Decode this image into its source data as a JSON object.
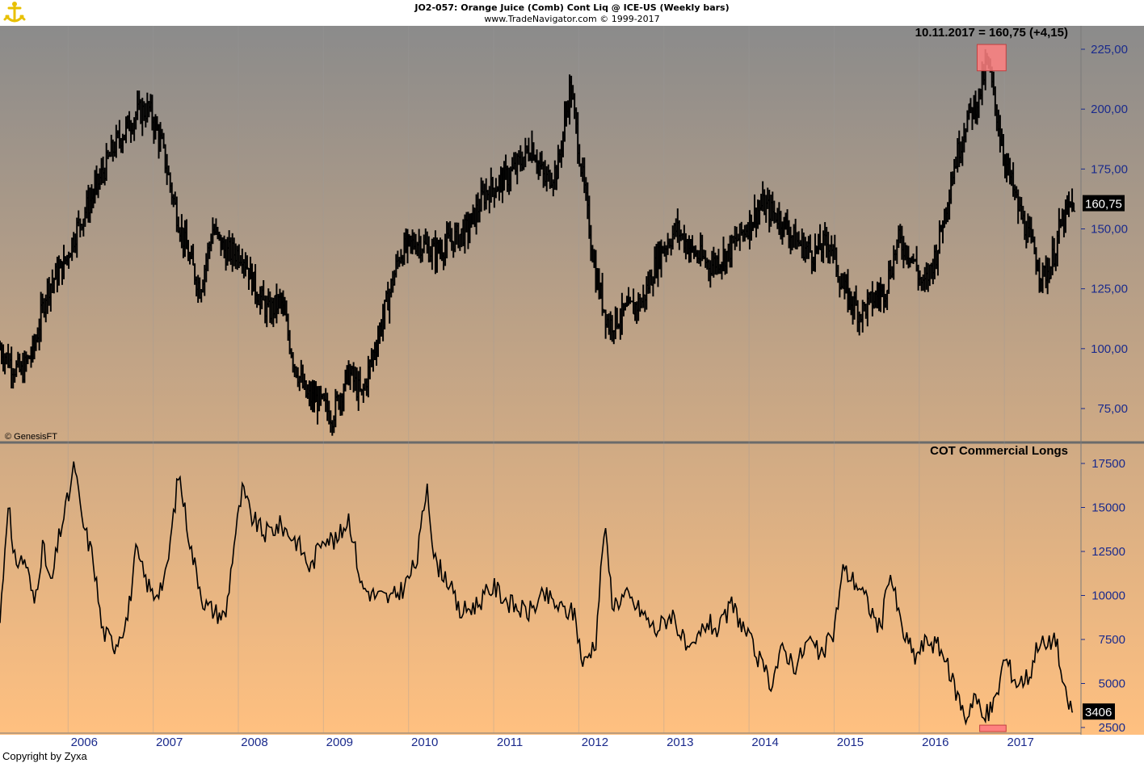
{
  "header": {
    "title": "JO2-057:  Orange Juice (Comb) Cont Liq @ ICE-US  (Weekly bars)",
    "subtitle": "www.TradeNavigator.com © 1999-2017"
  },
  "credits": {
    "genesis": "© GenesisFT",
    "copyright": "Copyright by Zyxa"
  },
  "logo": {
    "icon": "anchor-logo-icon",
    "color": "#e8c000"
  },
  "colors": {
    "bg_top": "#8b8b8b",
    "bg_bottom": "#ffc080",
    "series": "#000000",
    "axis_text": "#1a2a8c",
    "highlight": "#ff8080"
  },
  "chart_data": [
    {
      "type": "ohlc",
      "panel": "price",
      "annotation": "10.11.2017 = 160,75 (+4,15)",
      "last_value_label": "160,75",
      "last_value": 160.75,
      "ylim": [
        65,
        228
      ],
      "y_ticks": [
        75,
        100,
        125,
        150,
        175,
        200,
        225
      ],
      "y_tick_labels": [
        "75,00",
        "100,00",
        "125,00",
        "150,00",
        "175,00",
        "200,00",
        "225,00"
      ],
      "x_ticks": [
        2006,
        2007,
        2008,
        2009,
        2010,
        2011,
        2012,
        2013,
        2014,
        2015,
        2016,
        2017
      ],
      "x_tick_labels": [
        "2006",
        "2007",
        "2008",
        "2009",
        "2010",
        "2011",
        "2012",
        "2013",
        "2014",
        "2015",
        "2016",
        "2017"
      ],
      "xlim": [
        2005.2,
        2017.9
      ],
      "anchors": [
        [
          2005.2,
          100
        ],
        [
          2005.35,
          93
        ],
        [
          2005.45,
          90
        ],
        [
          2005.6,
          100
        ],
        [
          2005.75,
          125
        ],
        [
          2005.95,
          135
        ],
        [
          2006.1,
          150
        ],
        [
          2006.3,
          165
        ],
        [
          2006.55,
          185
        ],
        [
          2006.8,
          198
        ],
        [
          2006.95,
          200
        ],
        [
          2007.1,
          185
        ],
        [
          2007.25,
          160
        ],
        [
          2007.4,
          140
        ],
        [
          2007.55,
          125
        ],
        [
          2007.7,
          150
        ],
        [
          2007.85,
          140
        ],
        [
          2008.05,
          140
        ],
        [
          2008.2,
          125
        ],
        [
          2008.35,
          115
        ],
        [
          2008.5,
          120
        ],
        [
          2008.65,
          95
        ],
        [
          2008.8,
          80
        ],
        [
          2008.95,
          78
        ],
        [
          2009.1,
          72
        ],
        [
          2009.3,
          90
        ],
        [
          2009.45,
          80
        ],
        [
          2009.6,
          100
        ],
        [
          2009.75,
          120
        ],
        [
          2009.9,
          140
        ],
        [
          2010.1,
          145
        ],
        [
          2010.3,
          140
        ],
        [
          2010.5,
          145
        ],
        [
          2010.7,
          150
        ],
        [
          2010.9,
          165
        ],
        [
          2011.1,
          170
        ],
        [
          2011.25,
          175
        ],
        [
          2011.45,
          185
        ],
        [
          2011.6,
          170
        ],
        [
          2011.75,
          175
        ],
        [
          2011.9,
          210
        ],
        [
          2012.05,
          170
        ],
        [
          2012.2,
          130
        ],
        [
          2012.35,
          110
        ],
        [
          2012.55,
          115
        ],
        [
          2012.75,
          120
        ],
        [
          2012.95,
          140
        ],
        [
          2013.15,
          150
        ],
        [
          2013.35,
          140
        ],
        [
          2013.55,
          135
        ],
        [
          2013.75,
          140
        ],
        [
          2013.95,
          150
        ],
        [
          2014.15,
          160
        ],
        [
          2014.35,
          155
        ],
        [
          2014.55,
          145
        ],
        [
          2014.75,
          140
        ],
        [
          2014.95,
          145
        ],
        [
          2015.1,
          125
        ],
        [
          2015.3,
          115
        ],
        [
          2015.45,
          120
        ],
        [
          2015.6,
          125
        ],
        [
          2015.75,
          145
        ],
        [
          2015.9,
          140
        ],
        [
          2016.05,
          125
        ],
        [
          2016.2,
          140
        ],
        [
          2016.4,
          175
        ],
        [
          2016.55,
          195
        ],
        [
          2016.7,
          205
        ],
        [
          2016.8,
          220
        ],
        [
          2016.9,
          200
        ],
        [
          2017.0,
          180
        ],
        [
          2017.15,
          160
        ],
        [
          2017.3,
          145
        ],
        [
          2017.45,
          130
        ],
        [
          2017.55,
          135
        ],
        [
          2017.65,
          150
        ],
        [
          2017.75,
          158
        ],
        [
          2017.82,
          160.75
        ]
      ],
      "highlight_box": {
        "x0": 2016.68,
        "x1": 2017.02,
        "y0": 216,
        "y1": 227
      }
    },
    {
      "type": "line",
      "panel": "indicator",
      "title": "COT Commercial Longs",
      "last_value_label": "3406",
      "last_value": 3406,
      "ylim": [
        2300,
        18500
      ],
      "y_ticks": [
        2500,
        5000,
        7500,
        10000,
        12500,
        15000,
        17500
      ],
      "y_tick_labels": [
        "2500",
        "5000",
        "7500",
        "10000",
        "12500",
        "15000",
        "17500"
      ],
      "anchors": [
        [
          2005.2,
          8500
        ],
        [
          2005.3,
          15800
        ],
        [
          2005.35,
          12000
        ],
        [
          2005.5,
          12000
        ],
        [
          2005.6,
          9500
        ],
        [
          2005.7,
          12800
        ],
        [
          2005.8,
          10500
        ],
        [
          2005.9,
          13500
        ],
        [
          2006.0,
          15500
        ],
        [
          2006.08,
          17500
        ],
        [
          2006.15,
          14500
        ],
        [
          2006.3,
          12000
        ],
        [
          2006.4,
          8000
        ],
        [
          2006.55,
          7200
        ],
        [
          2006.7,
          8800
        ],
        [
          2006.8,
          12500
        ],
        [
          2006.9,
          11000
        ],
        [
          2007.0,
          10000
        ],
        [
          2007.15,
          11000
        ],
        [
          2007.3,
          17000
        ],
        [
          2007.45,
          12500
        ],
        [
          2007.6,
          9500
        ],
        [
          2007.75,
          9000
        ],
        [
          2007.85,
          8800
        ],
        [
          2007.95,
          13000
        ],
        [
          2008.05,
          16000
        ],
        [
          2008.15,
          14500
        ],
        [
          2008.3,
          13500
        ],
        [
          2008.5,
          14000
        ],
        [
          2008.7,
          13000
        ],
        [
          2008.85,
          11500
        ],
        [
          2009.0,
          13500
        ],
        [
          2009.15,
          13000
        ],
        [
          2009.3,
          14500
        ],
        [
          2009.45,
          10500
        ],
        [
          2009.6,
          10000
        ],
        [
          2009.8,
          9800
        ],
        [
          2009.95,
          10500
        ],
        [
          2010.1,
          12000
        ],
        [
          2010.22,
          16500
        ],
        [
          2010.3,
          12000
        ],
        [
          2010.45,
          11000
        ],
        [
          2010.6,
          9000
        ],
        [
          2010.8,
          9500
        ],
        [
          2011.0,
          10500
        ],
        [
          2011.2,
          9500
        ],
        [
          2011.4,
          9000
        ],
        [
          2011.6,
          10000
        ],
        [
          2011.8,
          9200
        ],
        [
          2011.95,
          9000
        ],
        [
          2012.05,
          6000
        ],
        [
          2012.2,
          7500
        ],
        [
          2012.3,
          14000
        ],
        [
          2012.4,
          9500
        ],
        [
          2012.55,
          10000
        ],
        [
          2012.75,
          9000
        ],
        [
          2012.9,
          8000
        ],
        [
          2013.1,
          9000
        ],
        [
          2013.3,
          6500
        ],
        [
          2013.5,
          8500
        ],
        [
          2013.65,
          8000
        ],
        [
          2013.8,
          9500
        ],
        [
          2013.95,
          8000
        ],
        [
          2014.1,
          6500
        ],
        [
          2014.25,
          5000
        ],
        [
          2014.4,
          7000
        ],
        [
          2014.55,
          6000
        ],
        [
          2014.7,
          7500
        ],
        [
          2014.85,
          6500
        ],
        [
          2015.0,
          8000
        ],
        [
          2015.1,
          11500
        ],
        [
          2015.3,
          10500
        ],
        [
          2015.45,
          9000
        ],
        [
          2015.55,
          8000
        ],
        [
          2015.65,
          11500
        ],
        [
          2015.8,
          8000
        ],
        [
          2015.95,
          6500
        ],
        [
          2016.1,
          7500
        ],
        [
          2016.25,
          7000
        ],
        [
          2016.4,
          5000
        ],
        [
          2016.55,
          3000
        ],
        [
          2016.65,
          4500
        ],
        [
          2016.75,
          2900
        ],
        [
          2016.9,
          4000
        ],
        [
          2017.0,
          6500
        ],
        [
          2017.15,
          5000
        ],
        [
          2017.3,
          5500
        ],
        [
          2017.4,
          7500
        ],
        [
          2017.5,
          7000
        ],
        [
          2017.6,
          7800
        ],
        [
          2017.7,
          4500
        ],
        [
          2017.8,
          3406
        ]
      ],
      "highlight_box": {
        "x0": 2016.71,
        "x1": 2017.02,
        "y0": 2600,
        "y1": 3000
      }
    }
  ]
}
